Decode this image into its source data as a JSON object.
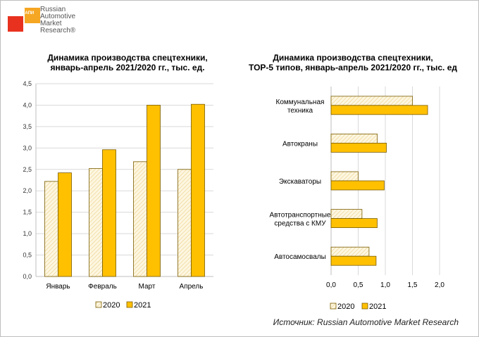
{
  "logo": {
    "tag": "НАПИ",
    "brand_lines": [
      "Russian",
      "Automotive",
      "Market",
      "Research®"
    ]
  },
  "source": "Источник: Russian Automotive Market Research",
  "colors": {
    "y2020_fill": "#fdf6e0",
    "y2020_stroke": "#7a5c00",
    "y2021_fill": "#ffc000",
    "y2021_stroke": "#7a5c00",
    "grid": "#d9d9d9"
  },
  "chart_data": [
    {
      "type": "bar",
      "title_lines": [
        "Динамика производства спецтехники,",
        "январь-апрель 2021/2020 гг., тыс. ед."
      ],
      "categories": [
        "Январь",
        "Февраль",
        "Март",
        "Апрель"
      ],
      "series": [
        {
          "name": "2020",
          "values": [
            2.22,
            2.52,
            2.68,
            2.5
          ]
        },
        {
          "name": "2021",
          "values": [
            2.42,
            2.96,
            4.0,
            4.02
          ]
        }
      ],
      "y_ticks": [
        "0,0",
        "0,5",
        "1,0",
        "1,5",
        "2,0",
        "2,5",
        "3,0",
        "3,5",
        "4,0",
        "4,5"
      ],
      "ylim": [
        0,
        4.5
      ],
      "grid": true,
      "legend": "bottom"
    },
    {
      "type": "bar",
      "orientation": "horizontal",
      "title_lines": [
        "Динамика производства спецтехники,",
        "TOP-5 типов, январь-апрель 2021/2020 гг., тыс. ед"
      ],
      "categories": [
        [
          "Коммунальная",
          "техника"
        ],
        [
          "Автокраны"
        ],
        [
          "Экскаваторы"
        ],
        [
          "Автотранспортные",
          "средства с КМУ"
        ],
        [
          "Автосамосвалы"
        ]
      ],
      "series": [
        {
          "name": "2020",
          "values": [
            1.5,
            0.85,
            0.5,
            0.57,
            0.7
          ]
        },
        {
          "name": "2021",
          "values": [
            1.78,
            1.02,
            0.98,
            0.85,
            0.83
          ]
        }
      ],
      "x_ticks": [
        "0,0",
        "0,5",
        "1,0",
        "1,5",
        "2,0"
      ],
      "xlim": [
        0,
        2.0
      ],
      "grid": true,
      "legend": "bottom"
    }
  ]
}
